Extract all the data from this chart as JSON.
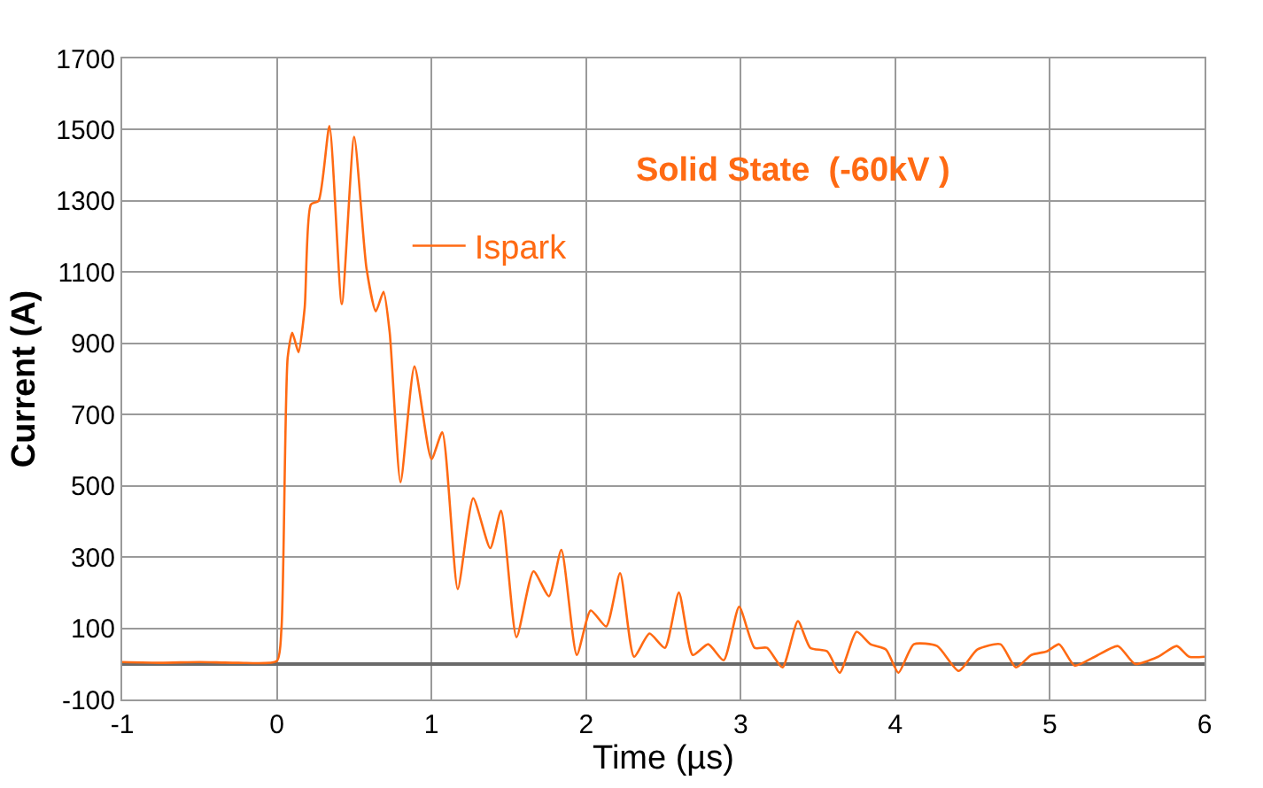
{
  "chart_data": {
    "type": "line",
    "xlabel": "Time (µs)",
    "ylabel": "Current (A)",
    "annotations": [
      "Solid State  (-60kV )"
    ],
    "xlim": [
      -1,
      6
    ],
    "xticks": [
      -1,
      0,
      1,
      2,
      3,
      4,
      5,
      6
    ],
    "ylim": [
      -100,
      1700
    ],
    "yticks": [
      -100,
      100,
      300,
      500,
      700,
      900,
      1100,
      1300,
      1500,
      1700
    ],
    "grid": true,
    "legend": "top left",
    "marker": "none",
    "line_style": "solid",
    "series": [
      {
        "name": "Ispark",
        "color": "#ff6a13",
        "x": [
          -1,
          -0.75,
          -0.5,
          -0.25,
          0,
          0.03,
          0.07,
          0.1,
          0.14,
          0.18,
          0.22,
          0.27,
          0.34,
          0.42,
          0.5,
          0.58,
          0.64,
          0.69,
          0.73,
          0.8,
          0.89,
          1.0,
          1.07,
          1.17,
          1.27,
          1.38,
          1.45,
          1.55,
          1.66,
          1.76,
          1.84,
          1.94,
          2.03,
          2.13,
          2.22,
          2.31,
          2.41,
          2.51,
          2.6,
          2.69,
          2.79,
          2.89,
          2.99,
          3.09,
          3.17,
          3.27,
          3.37,
          3.45,
          3.56,
          3.64,
          3.75,
          3.84,
          3.94,
          4.02,
          4.12,
          4.27,
          4.41,
          4.53,
          4.68,
          4.78,
          4.88,
          4.98,
          5.06,
          5.16,
          5.29,
          5.44,
          5.55,
          5.7,
          5.82,
          5.9,
          6.0
        ],
        "values": [
          5,
          3,
          5,
          3,
          8,
          100,
          860,
          930,
          875,
          1000,
          1290,
          1300,
          1510,
          1010,
          1480,
          1110,
          990,
          1045,
          930,
          510,
          835,
          575,
          650,
          210,
          465,
          325,
          430,
          75,
          260,
          190,
          320,
          25,
          150,
          105,
          255,
          20,
          85,
          45,
          200,
          25,
          55,
          10,
          160,
          45,
          45,
          -10,
          120,
          45,
          35,
          -25,
          90,
          55,
          40,
          -25,
          55,
          50,
          -20,
          40,
          55,
          -10,
          25,
          35,
          55,
          -5,
          20,
          50,
          0,
          20,
          50,
          20,
          20
        ]
      }
    ]
  }
}
